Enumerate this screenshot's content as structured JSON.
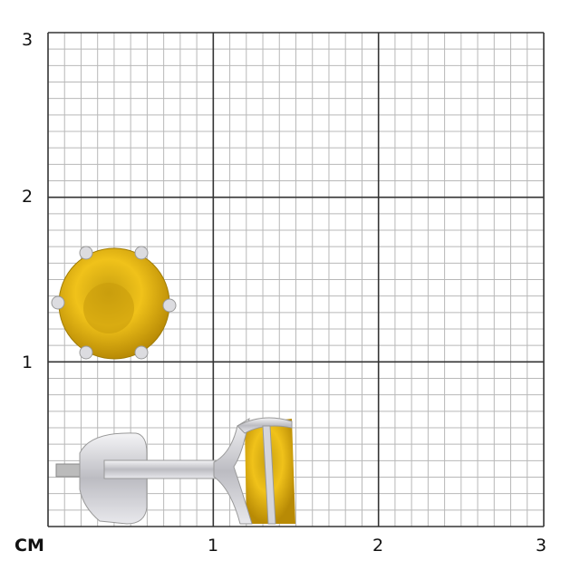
{
  "unit_label": "CM",
  "y_ticks": [
    "3",
    "2",
    "1"
  ],
  "x_ticks": [
    "1",
    "2",
    "3"
  ],
  "colors": {
    "grid_major": "#333333",
    "grid_minor": "#b8b8b8",
    "stone": "#e0b012",
    "metal": "#d8d8dc"
  }
}
